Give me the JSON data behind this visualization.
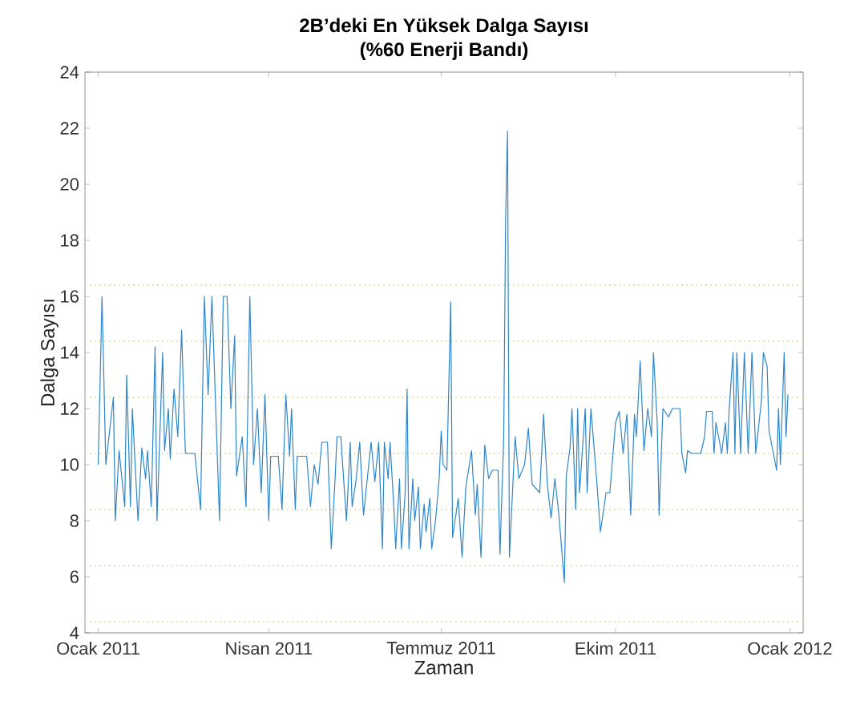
{
  "chart_data": {
    "type": "line",
    "title": "2B’deki En Yüksek Dalga Sayısı",
    "subtitle": "(%60 Enerji Bandı)",
    "xlabel": "Zaman",
    "ylabel": "Dalga Sayısı",
    "xlim": [
      "2010-12-25",
      "2012-01-08"
    ],
    "xticks": [
      {
        "value": "2011-01-01",
        "label": "Ocak 2011"
      },
      {
        "value": "2011-04-01",
        "label": "Nisan 2011"
      },
      {
        "value": "2011-07-01",
        "label": "Temmuz 2011"
      },
      {
        "value": "2011-10-01",
        "label": "Ekim 2011"
      },
      {
        "value": "2012-01-01",
        "label": "Ocak 2012"
      }
    ],
    "ylim": [
      4,
      24
    ],
    "yticks": [
      4,
      6,
      8,
      10,
      12,
      14,
      16,
      18,
      20,
      22,
      24
    ],
    "marker": "none",
    "line_style": "solid",
    "ref_lines": [
      {
        "axis": "y",
        "value": 4.4,
        "color": "#e6e2b4",
        "line_style": "dotted"
      },
      {
        "axis": "y",
        "value": 6.4,
        "color": "#e6e2b4",
        "line_style": "dotted"
      },
      {
        "axis": "y",
        "value": 8.4,
        "color": "#e6e2b4",
        "line_style": "dotted"
      },
      {
        "axis": "y",
        "value": 10.4,
        "color": "#e6e2b4",
        "line_style": "dotted"
      },
      {
        "axis": "y",
        "value": 12.4,
        "color": "#e6e2b4",
        "line_style": "dotted"
      },
      {
        "axis": "y",
        "value": 14.4,
        "color": "#e6e2b4",
        "line_style": "dotted"
      },
      {
        "axis": "y",
        "value": 16.4,
        "color": "#e6e2b4",
        "line_style": "dotted"
      }
    ],
    "series": [
      {
        "color": "#2f86c8",
        "x": [
          "2011-01-01",
          "2011-01-03",
          "2011-01-05",
          "2011-01-09",
          "2011-01-10",
          "2011-01-12",
          "2011-01-15",
          "2011-01-16",
          "2011-01-18",
          "2011-01-19",
          "2011-01-22",
          "2011-01-24",
          "2011-01-26",
          "2011-01-27",
          "2011-01-29",
          "2011-01-31",
          "2011-02-01",
          "2011-02-04",
          "2011-02-05",
          "2011-02-07",
          "2011-02-08",
          "2011-02-10",
          "2011-02-12",
          "2011-02-14",
          "2011-02-16",
          "2011-02-21",
          "2011-02-24",
          "2011-02-26",
          "2011-02-28",
          "2011-03-02",
          "2011-03-04",
          "2011-03-06",
          "2011-03-08",
          "2011-03-10",
          "2011-03-12",
          "2011-03-14",
          "2011-03-15",
          "2011-03-18",
          "2011-03-20",
          "2011-03-22",
          "2011-03-24",
          "2011-03-26",
          "2011-03-28",
          "2011-03-30",
          "2011-04-01",
          "2011-04-02",
          "2011-04-06",
          "2011-04-08",
          "2011-04-10",
          "2011-04-12",
          "2011-04-13",
          "2011-04-15",
          "2011-04-16",
          "2011-04-21",
          "2011-04-23",
          "2011-04-25",
          "2011-04-27",
          "2011-04-29",
          "2011-05-02",
          "2011-05-04",
          "2011-05-06",
          "2011-05-07",
          "2011-05-09",
          "2011-05-11",
          "2011-05-12",
          "2011-05-14",
          "2011-05-15",
          "2011-05-17",
          "2011-05-19",
          "2011-05-21",
          "2011-05-23",
          "2011-05-25",
          "2011-05-27",
          "2011-05-29",
          "2011-05-31",
          "2011-06-01",
          "2011-06-03",
          "2011-06-04",
          "2011-06-06",
          "2011-06-07",
          "2011-06-09",
          "2011-06-10",
          "2011-06-12",
          "2011-06-13",
          "2011-06-14",
          "2011-06-16",
          "2011-06-17",
          "2011-06-19",
          "2011-06-20",
          "2011-06-22",
          "2011-06-23",
          "2011-06-25",
          "2011-06-26",
          "2011-06-28",
          "2011-06-30",
          "2011-07-01",
          "2011-07-02",
          "2011-07-04",
          "2011-07-06",
          "2011-07-07",
          "2011-07-10",
          "2011-07-12",
          "2011-07-14",
          "2011-07-17",
          "2011-07-19",
          "2011-07-20",
          "2011-07-22",
          "2011-07-24",
          "2011-07-26",
          "2011-07-28",
          "2011-07-31",
          "2011-08-01",
          "2011-08-03",
          "2011-08-04",
          "2011-08-05",
          "2011-08-06",
          "2011-08-09",
          "2011-08-11",
          "2011-08-14",
          "2011-08-16",
          "2011-08-18",
          "2011-08-22",
          "2011-08-24",
          "2011-08-26",
          "2011-08-28",
          "2011-08-30",
          "2011-09-01",
          "2011-09-04",
          "2011-09-05",
          "2011-09-07",
          "2011-09-08",
          "2011-09-10",
          "2011-09-11",
          "2011-09-12",
          "2011-09-15",
          "2011-09-16",
          "2011-09-18",
          "2011-09-21",
          "2011-09-23",
          "2011-09-26",
          "2011-09-28",
          "2011-10-01",
          "2011-10-03",
          "2011-10-05",
          "2011-10-07",
          "2011-10-09",
          "2011-10-11",
          "2011-10-12",
          "2011-10-14",
          "2011-10-16",
          "2011-10-18",
          "2011-10-20",
          "2011-10-21",
          "2011-10-23",
          "2011-10-24",
          "2011-10-26",
          "2011-10-29",
          "2011-10-31",
          "2011-11-04",
          "2011-11-05",
          "2011-11-07",
          "2011-11-08",
          "2011-11-10",
          "2011-11-12",
          "2011-11-15",
          "2011-11-17",
          "2011-11-18",
          "2011-11-21",
          "2011-11-22",
          "2011-11-23",
          "2011-11-26",
          "2011-11-28",
          "2011-11-29",
          "2011-11-30",
          "2011-12-02",
          "2011-12-03",
          "2011-12-04",
          "2011-12-06",
          "2011-12-08",
          "2011-12-10",
          "2011-12-12",
          "2011-12-14",
          "2011-12-17",
          "2011-12-18",
          "2011-12-20",
          "2011-12-21",
          "2011-12-23",
          "2011-12-25",
          "2011-12-26",
          "2011-12-27",
          "2011-12-29",
          "2011-12-30",
          "2011-12-31"
        ],
        "values": [
          10,
          16,
          10,
          12.4,
          8,
          10.5,
          8.5,
          13.2,
          8.5,
          12,
          8,
          10.6,
          9.5,
          10.5,
          8.5,
          14.2,
          8,
          14,
          10.5,
          12,
          10.2,
          12.7,
          11,
          14.8,
          10.4,
          10.4,
          8.4,
          16,
          12.5,
          16,
          12,
          8,
          16,
          16,
          12,
          14.6,
          9.6,
          11,
          8.5,
          16,
          10,
          12,
          9,
          12.5,
          8,
          10.3,
          10.3,
          8.4,
          12.5,
          10.3,
          12,
          8.4,
          10.3,
          10.3,
          8.5,
          10,
          9.3,
          10.8,
          10.8,
          7,
          9.5,
          11,
          11,
          9,
          8,
          10.8,
          8.5,
          9.4,
          10.8,
          8.2,
          9.5,
          10.8,
          9.4,
          10.8,
          7,
          10.8,
          9.5,
          10.8,
          8.5,
          7,
          9.5,
          7,
          9,
          12.7,
          7,
          9.5,
          8,
          9.2,
          7,
          8.6,
          7.6,
          8.8,
          7,
          8,
          9.6,
          11.2,
          10,
          9.8,
          15.8,
          7.4,
          8.8,
          6.7,
          9.2,
          10.5,
          8.2,
          9.3,
          6.7,
          10.7,
          9.5,
          9.8,
          9.8,
          6.8,
          11,
          18.8,
          21.9,
          6.7,
          11,
          9.5,
          10,
          11.3,
          9.3,
          9,
          11.8,
          9.3,
          8.1,
          9.5,
          8.3,
          5.8,
          9.6,
          10.6,
          12,
          8.4,
          12,
          9,
          12,
          9,
          12,
          9.5,
          7.6,
          9,
          9,
          11.5,
          11.9,
          10.4,
          11.8,
          8.2,
          11.8,
          11,
          13.7,
          10.5,
          12,
          11,
          14,
          11.5,
          8.2,
          12,
          11.7,
          12,
          12,
          10.4,
          9.7,
          10.5,
          10.4,
          10.4,
          10.4,
          11,
          11.9,
          11.9,
          10.4,
          11.5,
          10.4,
          11.5,
          10.4,
          12,
          14,
          10.4,
          14,
          10.4,
          14,
          10.4,
          14,
          10.4,
          12.3,
          14,
          13.5,
          11.2,
          10.5,
          9.8,
          12,
          10,
          14,
          11,
          12.5
        ]
      }
    ]
  }
}
